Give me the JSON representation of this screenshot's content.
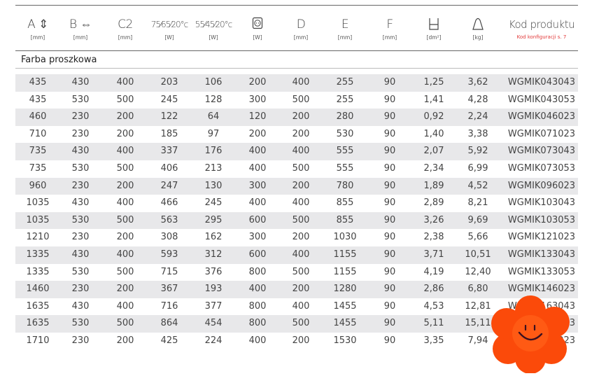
{
  "headers": [
    {
      "label": "A ⇕",
      "unit": "[mm]"
    },
    {
      "label": "B ⇔",
      "unit": "[mm]"
    },
    {
      "label": "C2",
      "unit": "[mm]"
    },
    {
      "label": "75⁄65⁄20°c",
      "unit": "[W]"
    },
    {
      "label": "55⁄45⁄20°c",
      "unit": "[W]"
    },
    {
      "label": "socket-icon",
      "unit": "[W]"
    },
    {
      "label": "D",
      "unit": "[mm]"
    },
    {
      "label": "E",
      "unit": "[mm]"
    },
    {
      "label": "F",
      "unit": "[mm]"
    },
    {
      "label": "area-icon",
      "unit": "[dm²]"
    },
    {
      "label": "weight-icon",
      "unit": "[kg]"
    },
    {
      "label": "Kod produktu",
      "unit": "Kod konfiguracji s. 7"
    }
  ],
  "section": "Farba proszkowa",
  "accent": "#e23a3a",
  "rows": [
    [
      "435",
      "430",
      "400",
      "203",
      "106",
      "200",
      "400",
      "255",
      "90",
      "1,25",
      "3,62",
      "WGMIK043043"
    ],
    [
      "435",
      "530",
      "500",
      "245",
      "128",
      "300",
      "500",
      "255",
      "90",
      "1,41",
      "4,28",
      "WGMIK043053"
    ],
    [
      "460",
      "230",
      "200",
      "122",
      "64",
      "120",
      "200",
      "280",
      "90",
      "0,92",
      "2,24",
      "WGMIK046023"
    ],
    [
      "710",
      "230",
      "200",
      "185",
      "97",
      "200",
      "200",
      "530",
      "90",
      "1,40",
      "3,38",
      "WGMIK071023"
    ],
    [
      "735",
      "430",
      "400",
      "337",
      "176",
      "400",
      "400",
      "555",
      "90",
      "2,07",
      "5,92",
      "WGMIK073043"
    ],
    [
      "735",
      "530",
      "500",
      "406",
      "213",
      "400",
      "500",
      "555",
      "90",
      "2,34",
      "6,99",
      "WGMIK073053"
    ],
    [
      "960",
      "230",
      "200",
      "247",
      "130",
      "300",
      "200",
      "780",
      "90",
      "1,89",
      "4,52",
      "WGMIK096023"
    ],
    [
      "1035",
      "430",
      "400",
      "466",
      "245",
      "400",
      "400",
      "855",
      "90",
      "2,89",
      "8,21",
      "WGMIK103043"
    ],
    [
      "1035",
      "530",
      "500",
      "563",
      "295",
      "600",
      "500",
      "855",
      "90",
      "3,26",
      "9,69",
      "WGMIK103053"
    ],
    [
      "1210",
      "230",
      "200",
      "308",
      "162",
      "300",
      "200",
      "1030",
      "90",
      "2,38",
      "5,66",
      "WGMIK121023"
    ],
    [
      "1335",
      "430",
      "400",
      "593",
      "312",
      "600",
      "400",
      "1155",
      "90",
      "3,71",
      "10,51",
      "WGMIK133043"
    ],
    [
      "1335",
      "530",
      "500",
      "715",
      "376",
      "800",
      "500",
      "1155",
      "90",
      "4,19",
      "12,40",
      "WGMIK133053"
    ],
    [
      "1460",
      "230",
      "200",
      "367",
      "193",
      "400",
      "200",
      "1280",
      "90",
      "2,86",
      "6,80",
      "WGMIK146023"
    ],
    [
      "1635",
      "430",
      "400",
      "716",
      "377",
      "800",
      "400",
      "1455",
      "90",
      "4,53",
      "12,81",
      "WGMIK163043"
    ],
    [
      "1635",
      "530",
      "500",
      "864",
      "454",
      "800",
      "500",
      "1455",
      "90",
      "5,11",
      "15,11",
      "WGMIK163053"
    ],
    [
      "1710",
      "230",
      "200",
      "425",
      "224",
      "400",
      "200",
      "1530",
      "90",
      "3,35",
      "7,94",
      "WGMIK171023"
    ]
  ]
}
